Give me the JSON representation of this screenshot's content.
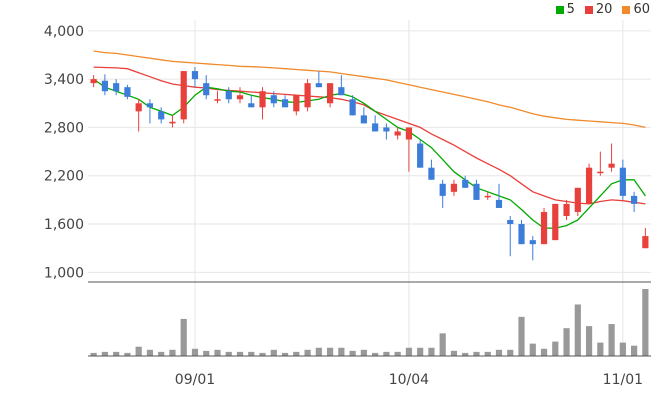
{
  "chart_data": {
    "type": "candlestick",
    "legend": [
      {
        "name": "5",
        "color": "#00aa00"
      },
      {
        "name": "20",
        "color": "#e8403a"
      },
      {
        "name": "60",
        "color": "#f08a2c"
      }
    ],
    "y_ticks": [
      "4,000",
      "3,400",
      "2,800",
      "2,200",
      "1,600",
      "1,000"
    ],
    "y_tick_values": [
      4000,
      3400,
      2800,
      2200,
      1600,
      1000
    ],
    "ylim": [
      880,
      4060
    ],
    "x_ticks": [
      {
        "label": "09/01",
        "index": 9
      },
      {
        "label": "10/04",
        "index": 28
      },
      {
        "label": "11/01",
        "index": 47
      }
    ],
    "colors": {
      "up": "#e8403a",
      "down": "#3b7dd8",
      "volume": "#999999",
      "grid": "#e6e6e6"
    },
    "candles": [
      [
        3350,
        3450,
        3300,
        3400
      ],
      [
        3380,
        3460,
        3200,
        3250
      ],
      [
        3350,
        3400,
        3200,
        3250
      ],
      [
        3300,
        3330,
        3150,
        3180
      ],
      [
        3000,
        3150,
        2750,
        3100
      ],
      [
        3100,
        3150,
        2850,
        3050
      ],
      [
        3000,
        3050,
        2850,
        2900
      ],
      [
        2850,
        2950,
        2800,
        2870
      ],
      [
        2900,
        3500,
        2850,
        3500
      ],
      [
        3500,
        3550,
        3300,
        3400
      ],
      [
        3350,
        3450,
        3150,
        3200
      ],
      [
        3150,
        3250,
        3100,
        3150
      ],
      [
        3250,
        3300,
        3100,
        3150
      ],
      [
        3150,
        3300,
        3100,
        3200
      ],
      [
        3100,
        3200,
        3050,
        3050
      ],
      [
        3050,
        3300,
        2900,
        3250
      ],
      [
        3200,
        3250,
        3050,
        3100
      ],
      [
        3150,
        3200,
        3050,
        3050
      ],
      [
        3000,
        3200,
        2950,
        3200
      ],
      [
        3050,
        3400,
        3000,
        3350
      ],
      [
        3350,
        3500,
        3300,
        3300
      ],
      [
        3100,
        3350,
        3050,
        3350
      ],
      [
        3300,
        3450,
        3200,
        3200
      ],
      [
        3150,
        3200,
        2950,
        2950
      ],
      [
        2950,
        3050,
        2850,
        2850
      ],
      [
        2850,
        2950,
        2750,
        2750
      ],
      [
        2800,
        2850,
        2650,
        2750
      ],
      [
        2700,
        2800,
        2650,
        2750
      ],
      [
        2650,
        2800,
        2250,
        2800
      ],
      [
        2600,
        2650,
        2300,
        2300
      ],
      [
        2300,
        2400,
        2150,
        2150
      ],
      [
        2100,
        2150,
        1800,
        1950
      ],
      [
        2000,
        2150,
        1950,
        2100
      ],
      [
        2150,
        2200,
        2050,
        2050
      ],
      [
        2100,
        2150,
        1900,
        1900
      ],
      [
        1950,
        2000,
        1900,
        1950
      ],
      [
        1900,
        2100,
        1800,
        1800
      ],
      [
        1650,
        1700,
        1200,
        1600
      ],
      [
        1600,
        1650,
        1350,
        1350
      ],
      [
        1400,
        1450,
        1150,
        1350
      ],
      [
        1350,
        1800,
        1350,
        1750
      ],
      [
        1400,
        1850,
        1400,
        1850
      ],
      [
        1700,
        1900,
        1650,
        1850
      ],
      [
        1750,
        2050,
        1700,
        2050
      ],
      [
        1850,
        2350,
        1850,
        2300
      ],
      [
        2250,
        2500,
        2200,
        2250
      ],
      [
        2300,
        2600,
        2250,
        2350
      ],
      [
        2300,
        2400,
        1900,
        1950
      ],
      [
        1950,
        2000,
        1750,
        1850
      ],
      [
        1300,
        1550,
        1300,
        1450
      ]
    ],
    "ma5": [
      3400,
      3300,
      3250,
      3200,
      3150,
      3050,
      3000,
      2950,
      3050,
      3200,
      3300,
      3280,
      3250,
      3240,
      3200,
      3170,
      3150,
      3120,
      3110,
      3130,
      3150,
      3200,
      3220,
      3180,
      3100,
      3000,
      2900,
      2800,
      2750,
      2650,
      2550,
      2400,
      2250,
      2150,
      2050,
      2000,
      1950,
      1900,
      1780,
      1650,
      1550,
      1550,
      1580,
      1650,
      1800,
      1950,
      2100,
      2150,
      2150,
      1950
    ],
    "ma20": [
      3550,
      3545,
      3540,
      3530,
      3480,
      3430,
      3380,
      3340,
      3320,
      3300,
      3290,
      3270,
      3260,
      3250,
      3240,
      3230,
      3220,
      3210,
      3200,
      3190,
      3180,
      3170,
      3150,
      3120,
      3080,
      3000,
      2950,
      2900,
      2850,
      2800,
      2720,
      2650,
      2580,
      2500,
      2420,
      2350,
      2280,
      2200,
      2100,
      2000,
      1950,
      1900,
      1880,
      1860,
      1850,
      1880,
      1900,
      1890,
      1870,
      1850
    ],
    "ma60": [
      3750,
      3730,
      3720,
      3700,
      3680,
      3660,
      3640,
      3620,
      3610,
      3600,
      3590,
      3580,
      3570,
      3560,
      3555,
      3550,
      3540,
      3530,
      3520,
      3510,
      3500,
      3490,
      3470,
      3450,
      3430,
      3410,
      3390,
      3360,
      3330,
      3300,
      3270,
      3240,
      3210,
      3180,
      3150,
      3120,
      3080,
      3050,
      3010,
      2970,
      2940,
      2920,
      2900,
      2890,
      2880,
      2870,
      2860,
      2850,
      2830,
      2800
    ],
    "volume": [
      3,
      4,
      4,
      3,
      9,
      6,
      4,
      6,
      36,
      7,
      5,
      6,
      4,
      4,
      4,
      3,
      6,
      3,
      4,
      6,
      8,
      8,
      8,
      5,
      6,
      3,
      4,
      4,
      8,
      8,
      8,
      22,
      5,
      3,
      4,
      4,
      6,
      6,
      38,
      12,
      7,
      14,
      27,
      50,
      29,
      13,
      31,
      13,
      10,
      65
    ]
  }
}
